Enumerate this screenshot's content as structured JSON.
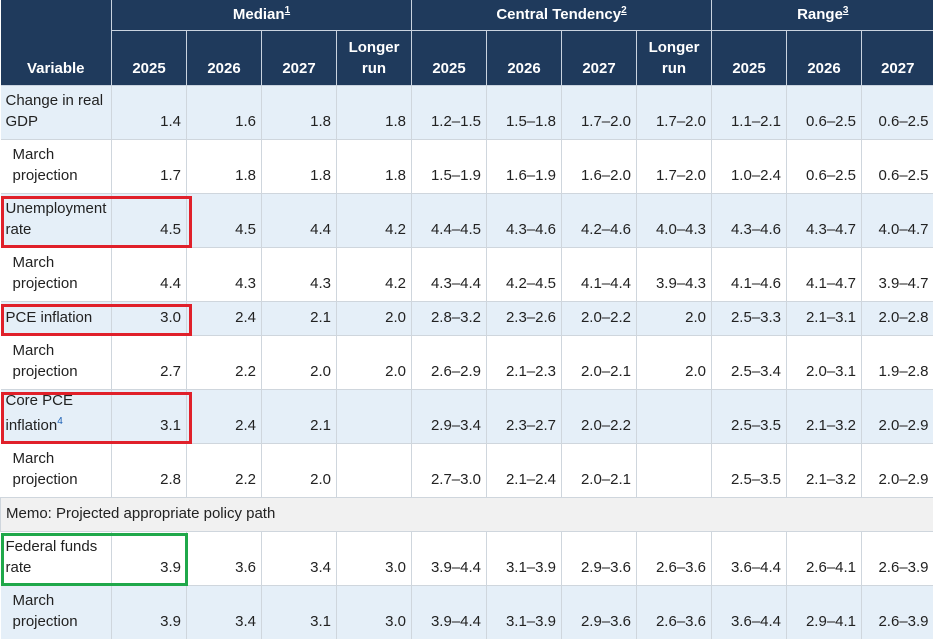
{
  "header": {
    "variable": "Variable",
    "groups": [
      {
        "label": "Median",
        "note": "1",
        "columns": [
          "2025",
          "2026",
          "2027",
          "Longer run"
        ]
      },
      {
        "label": "Central Tendency",
        "note": "2",
        "columns": [
          "2025",
          "2026",
          "2027",
          "Longer run"
        ]
      },
      {
        "label": "Range",
        "note": "3",
        "columns": [
          "2025",
          "2026",
          "2027"
        ]
      }
    ]
  },
  "rows": [
    {
      "label": "Change in real GDP",
      "cells": [
        "1.4",
        "1.6",
        "1.8",
        "1.8",
        "1.2–1.5",
        "1.5–1.8",
        "1.7–2.0",
        "1.7–2.0",
        "1.1–2.1",
        "0.6–2.5",
        "0.6–2.5"
      ]
    },
    {
      "label": "March projection",
      "cells": [
        "1.7",
        "1.8",
        "1.8",
        "1.8",
        "1.5–1.9",
        "1.6–1.9",
        "1.6–2.0",
        "1.7–2.0",
        "1.0–2.4",
        "0.6–2.5",
        "0.6–2.5"
      ]
    },
    {
      "label": "Unemployment rate",
      "cells": [
        "4.5",
        "4.5",
        "4.4",
        "4.2",
        "4.4–4.5",
        "4.3–4.6",
        "4.2–4.6",
        "4.0–4.3",
        "4.3–4.6",
        "4.3–4.7",
        "4.0–4.7"
      ]
    },
    {
      "label": "March projection",
      "cells": [
        "4.4",
        "4.3",
        "4.3",
        "4.2",
        "4.3–4.4",
        "4.2–4.5",
        "4.1–4.4",
        "3.9–4.3",
        "4.1–4.6",
        "4.1–4.7",
        "3.9–4.7"
      ]
    },
    {
      "label": "PCE inflation",
      "cells": [
        "3.0",
        "2.4",
        "2.1",
        "2.0",
        "2.8–3.2",
        "2.3–2.6",
        "2.0–2.2",
        "2.0",
        "2.5–3.3",
        "2.1–3.1",
        "2.0–2.8"
      ]
    },
    {
      "label": "March projection",
      "cells": [
        "2.7",
        "2.2",
        "2.0",
        "2.0",
        "2.6–2.9",
        "2.1–2.3",
        "2.0–2.1",
        "2.0",
        "2.5–3.4",
        "2.0–3.1",
        "1.9–2.8"
      ]
    },
    {
      "label": "Core PCE inflation",
      "note": "4",
      "cells": [
        "3.1",
        "2.4",
        "2.1",
        null,
        "2.9–3.4",
        "2.3–2.7",
        "2.0–2.2",
        null,
        "2.5–3.5",
        "2.1–3.2",
        "2.0–2.9"
      ]
    },
    {
      "label": "March projection",
      "cells": [
        "2.8",
        "2.2",
        "2.0",
        null,
        "2.7–3.0",
        "2.1–2.4",
        "2.0–2.1",
        null,
        "2.5–3.5",
        "2.1–3.2",
        "2.0–2.9"
      ]
    }
  ],
  "memo": "Memo: Projected appropriate policy path",
  "policy_rows": [
    {
      "label": "Federal funds rate",
      "cells": [
        "3.9",
        "3.6",
        "3.4",
        "3.0",
        "3.9–4.4",
        "3.1–3.9",
        "2.9–3.6",
        "2.6–3.6",
        "3.6–4.4",
        "2.6–4.1",
        "2.6–3.9"
      ]
    },
    {
      "label": "March projection",
      "cells": [
        "3.9",
        "3.4",
        "3.1",
        "3.0",
        "3.9–4.4",
        "3.1–3.9",
        "2.9–3.6",
        "2.6–3.6",
        "3.6–4.4",
        "2.9–4.1",
        "2.6–3.9"
      ]
    }
  ]
}
